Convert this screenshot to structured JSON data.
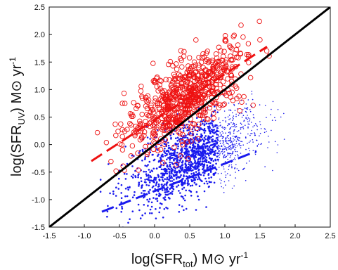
{
  "chart_data": {
    "type": "scatter",
    "xlabel": {
      "main": "log(SFR",
      "sub": "tot",
      "rest": ") M⊙  yr",
      "sup": "-1"
    },
    "ylabel": {
      "main": "log(SFR",
      "sub": "UV",
      "rest": ") M⊙  yr",
      "sup": "-1"
    },
    "xlim": [
      -1.5,
      2.5
    ],
    "ylim": [
      -1.5,
      2.5
    ],
    "xticks": [
      "-1.5",
      "-1.0",
      "-0.5",
      "0.0",
      "0.5",
      "1.0",
      "1.5",
      "2.0",
      "2.5"
    ],
    "yticks": [
      "-1.5",
      "-1.0",
      "-0.5",
      "0.0",
      "0.5",
      "1.0",
      "1.5",
      "2.0",
      "2.5"
    ],
    "grid": false,
    "colors": {
      "uv": "#ee1111",
      "ir": "#1a1aee",
      "identity": "#000000"
    },
    "series": [
      {
        "marker": "open-circle",
        "color": "#ee1111",
        "approx_count": 700,
        "cloud": {
          "x_mean": 0.45,
          "x_sd": 0.42,
          "x_range": [
            -1.2,
            1.65
          ],
          "slope": 0.75,
          "intercept": 0.53,
          "scatter": 0.34
        },
        "fit": {
          "style": "dashed",
          "x": [
            -0.9,
            1.6
          ],
          "y": [
            -0.3,
            1.78
          ]
        }
      },
      {
        "marker": "dot",
        "color": "#1a1aee",
        "approx_count": 1600,
        "cloud": {
          "x_mean": 0.6,
          "x_sd": 0.48,
          "x_range": [
            -0.8,
            1.85
          ],
          "slope": 0.55,
          "intercept": -0.55,
          "scatter": 0.33
        },
        "fit": {
          "style": "dashed",
          "x": [
            -0.75,
            1.45
          ],
          "y": [
            -1.22,
            -0.12
          ]
        }
      },
      {
        "marker": "line",
        "color": "#000000",
        "fit": {
          "style": "solid",
          "x": [
            -1.5,
            2.5
          ],
          "y": [
            -1.5,
            2.5
          ]
        }
      }
    ]
  }
}
